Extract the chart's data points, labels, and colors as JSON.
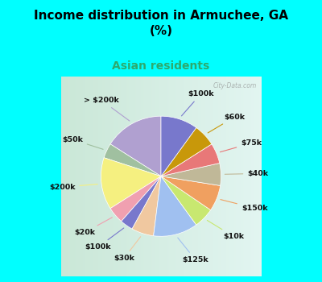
{
  "title": "Income distribution in Armuchee, GA\n(%)",
  "subtitle": "Asian residents",
  "title_color": "#000000",
  "subtitle_color": "#2daa6e",
  "background_outer": "#00ffff",
  "background_chart": "#d8f0e8",
  "slices": [
    {
      "label": "> $200k",
      "value": 16.0,
      "color": "#b0a0d0"
    },
    {
      "label": "$50k",
      "value": 4.0,
      "color": "#a0c0a0"
    },
    {
      "label": "$200k",
      "value": 14.0,
      "color": "#f5f080"
    },
    {
      "label": "$20k",
      "value": 4.5,
      "color": "#f0a0b0"
    },
    {
      "label": "$100k",
      "value": 3.5,
      "color": "#7878cc"
    },
    {
      "label": "$30k",
      "value": 6.0,
      "color": "#f0c8a0"
    },
    {
      "label": "$125k",
      "value": 12.0,
      "color": "#a0c0f0"
    },
    {
      "label": "$10k",
      "value": 5.5,
      "color": "#c8e870"
    },
    {
      "label": "$150k",
      "value": 7.0,
      "color": "#f0a060"
    },
    {
      "label": "$40k",
      "value": 6.0,
      "color": "#c0b898"
    },
    {
      "label": "$75k",
      "value": 5.5,
      "color": "#e87878"
    },
    {
      "label": "$60k",
      "value": 6.0,
      "color": "#c8980a"
    },
    {
      "label": "$100k_b",
      "value": 10.0,
      "color": "#7878cc"
    }
  ],
  "watermark": "City-Data.com"
}
